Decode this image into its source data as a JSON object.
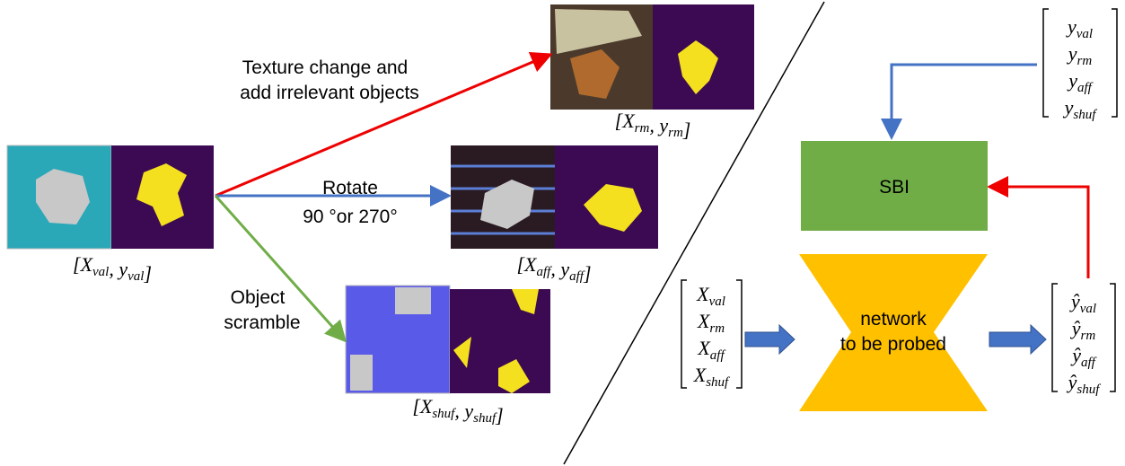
{
  "annotations": {
    "texture": [
      "Texture change and",
      "add irrelevant objects"
    ],
    "rotate": [
      "Rotate",
      "90 °or 270°"
    ],
    "scramble": [
      "Object",
      "scramble"
    ]
  },
  "image_labels": [
    {
      "open": "[",
      "terms": [
        {
          "base": "X",
          "sub": "val"
        },
        {
          "base": "y",
          "sub": "val"
        }
      ],
      "sep": ", ",
      "close": "]"
    },
    {
      "open": "[",
      "terms": [
        {
          "base": "X",
          "sub": "rm"
        },
        {
          "base": "y",
          "sub": "rm"
        }
      ],
      "sep": ", ",
      "close": "]"
    },
    {
      "open": "[",
      "terms": [
        {
          "base": "X",
          "sub": "aff"
        },
        {
          "base": "y",
          "sub": "aff"
        }
      ],
      "sep": ", ",
      "close": "]"
    },
    {
      "open": "[",
      "terms": [
        {
          "base": "X",
          "sub": "shuf"
        },
        {
          "base": "y",
          "sub": "shuf"
        }
      ],
      "sep": ", ",
      "close": "]"
    }
  ],
  "blocks": {
    "sbi": "SBI",
    "network": [
      "network",
      "to be probed"
    ]
  },
  "matrices": {
    "targets": [
      {
        "base": "y",
        "sub": "val"
      },
      {
        "base": "y",
        "sub": "rm"
      },
      {
        "base": "y",
        "sub": "aff"
      },
      {
        "base": "y",
        "sub": "shuf"
      }
    ],
    "inputs": [
      {
        "base": "X",
        "sub": "val"
      },
      {
        "base": "X",
        "sub": "rm"
      },
      {
        "base": "X",
        "sub": "aff"
      },
      {
        "base": "X",
        "sub": "shuf"
      }
    ],
    "predictions": [
      {
        "base": "ŷ",
        "sub": "val"
      },
      {
        "base": "ŷ",
        "sub": "rm"
      },
      {
        "base": "ŷ",
        "sub": "aff"
      },
      {
        "base": "ŷ",
        "sub": "shuf"
      }
    ]
  }
}
